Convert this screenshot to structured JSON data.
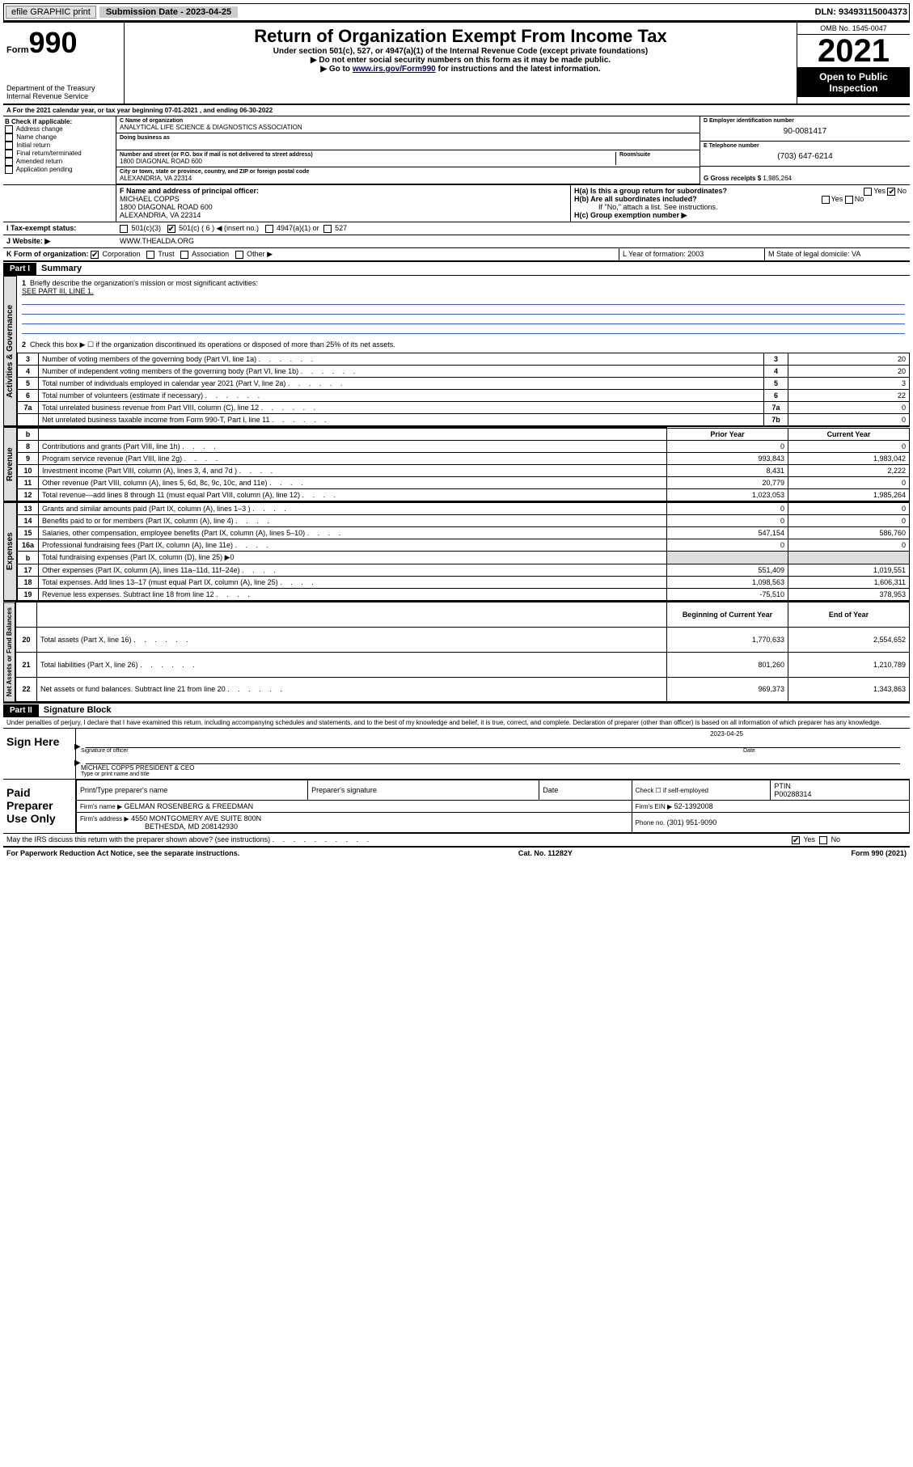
{
  "topbar": {
    "efile": "efile GRAPHIC print",
    "sub_label": "Submission Date - 2023-04-25",
    "dln": "DLN: 93493115004373"
  },
  "header": {
    "form_word": "Form",
    "form_no": "990",
    "title": "Return of Organization Exempt From Income Tax",
    "subtitle": "Under section 501(c), 527, or 4947(a)(1) of the Internal Revenue Code (except private foundations)",
    "note1": "▶ Do not enter social security numbers on this form as it may be made public.",
    "note2_pre": "▶ Go to ",
    "note2_link": "www.irs.gov/Form990",
    "note2_post": " for instructions and the latest information.",
    "dept": "Department of the Treasury",
    "irs": "Internal Revenue Service",
    "omb": "OMB No. 1545-0047",
    "year": "2021",
    "open": "Open to Public Inspection"
  },
  "line_a": "A For the 2021 calendar year, or tax year beginning 07-01-2021   , and ending 06-30-2022",
  "section_b": {
    "hdr": "B Check if applicable:",
    "items": [
      "Address change",
      "Name change",
      "Initial return",
      "Final return/terminated",
      "Amended return",
      "Application pending"
    ]
  },
  "section_c": {
    "name_lbl": "C Name of organization",
    "name": "ANALYTICAL LIFE SCIENCE & DIAGNOSTICS ASSOCIATION",
    "dba_lbl": "Doing business as",
    "addr_lbl": "Number and street (or P.O. box if mail is not delivered to street address)",
    "room_lbl": "Room/suite",
    "addr": "1800 DIAGONAL ROAD 600",
    "city_lbl": "City or town, state or province, country, and ZIP or foreign postal code",
    "city": "ALEXANDRIA, VA  22314"
  },
  "section_d": {
    "ein_lbl": "D Employer identification number",
    "ein": "90-0081417",
    "tel_lbl": "E Telephone number",
    "tel": "(703) 647-6214",
    "gross_lbl": "G Gross receipts $",
    "gross": "1,985,264"
  },
  "section_f": {
    "lbl": "F Name and address of principal officer:",
    "name": "MICHAEL COPPS",
    "addr1": "1800 DIAGONAL ROAD 600",
    "addr2": "ALEXANDRIA, VA  22314"
  },
  "section_h": {
    "ha": "H(a)  Is this a group return for subordinates?",
    "hb": "H(b)  Are all subordinates included?",
    "hb_note": "If \"No,\" attach a list. See instructions.",
    "hc": "H(c)  Group exemption number ▶",
    "yes": "Yes",
    "no": "No"
  },
  "section_i": {
    "lbl": "I   Tax-exempt status:",
    "c3": "501(c)(3)",
    "c": "501(c) ( 6 ) ◀ (insert no.)",
    "a1": "4947(a)(1) or",
    "s527": "527"
  },
  "section_j": {
    "lbl": "J   Website: ▶",
    "val": "WWW.THEALDA.ORG"
  },
  "section_k": {
    "lbl": "K Form of organization:",
    "opts": [
      "Corporation",
      "Trust",
      "Association",
      "Other ▶"
    ],
    "l": "L Year of formation: 2003",
    "m": "M State of legal domicile: VA"
  },
  "part1": {
    "hdr": "Part I",
    "title": "Summary",
    "q1": "Briefly describe the organization's mission or most significant activities:",
    "q1_val": "SEE PART III, LINE 1.",
    "q2": "Check this box ▶ ☐  if the organization discontinued its operations or disposed of more than 25% of its net assets.",
    "vtab1": "Activities & Governance",
    "vtab2": "Revenue",
    "vtab3": "Expenses",
    "vtab4": "Net Assets or Fund Balances",
    "col_prior": "Prior Year",
    "col_curr": "Current Year",
    "col_beg": "Beginning of Current Year",
    "col_end": "End of Year",
    "gov_rows": [
      {
        "n": "3",
        "desc": "Number of voting members of the governing body (Part VI, line 1a)",
        "key": "3",
        "val": "20"
      },
      {
        "n": "4",
        "desc": "Number of independent voting members of the governing body (Part VI, line 1b)",
        "key": "4",
        "val": "20"
      },
      {
        "n": "5",
        "desc": "Total number of individuals employed in calendar year 2021 (Part V, line 2a)",
        "key": "5",
        "val": "3"
      },
      {
        "n": "6",
        "desc": "Total number of volunteers (estimate if necessary)",
        "key": "6",
        "val": "22"
      },
      {
        "n": "7a",
        "desc": "Total unrelated business revenue from Part VIII, column (C), line 12",
        "key": "7a",
        "val": "0"
      },
      {
        "n": "",
        "desc": "Net unrelated business taxable income from Form 990-T, Part I, line 11",
        "key": "7b",
        "val": "0"
      }
    ],
    "rev_rows": [
      {
        "n": "8",
        "desc": "Contributions and grants (Part VIII, line 1h)",
        "p": "0",
        "c": "0"
      },
      {
        "n": "9",
        "desc": "Program service revenue (Part VIII, line 2g)",
        "p": "993,843",
        "c": "1,983,042"
      },
      {
        "n": "10",
        "desc": "Investment income (Part VIII, column (A), lines 3, 4, and 7d )",
        "p": "8,431",
        "c": "2,222"
      },
      {
        "n": "11",
        "desc": "Other revenue (Part VIII, column (A), lines 5, 6d, 8c, 9c, 10c, and 11e)",
        "p": "20,779",
        "c": "0"
      },
      {
        "n": "12",
        "desc": "Total revenue—add lines 8 through 11 (must equal Part VIII, column (A), line 12)",
        "p": "1,023,053",
        "c": "1,985,264"
      }
    ],
    "exp_rows": [
      {
        "n": "13",
        "desc": "Grants and similar amounts paid (Part IX, column (A), lines 1–3 )",
        "p": "0",
        "c": "0"
      },
      {
        "n": "14",
        "desc": "Benefits paid to or for members (Part IX, column (A), line 4)",
        "p": "0",
        "c": "0"
      },
      {
        "n": "15",
        "desc": "Salaries, other compensation, employee benefits (Part IX, column (A), lines 5–10)",
        "p": "547,154",
        "c": "586,760"
      },
      {
        "n": "16a",
        "desc": "Professional fundraising fees (Part IX, column (A), line 11e)",
        "p": "0",
        "c": "0"
      },
      {
        "n": "b",
        "desc": "Total fundraising expenses (Part IX, column (D), line 25) ▶0",
        "p": "",
        "c": ""
      },
      {
        "n": "17",
        "desc": "Other expenses (Part IX, column (A), lines 11a–11d, 11f–24e)",
        "p": "551,409",
        "c": "1,019,551"
      },
      {
        "n": "18",
        "desc": "Total expenses. Add lines 13–17 (must equal Part IX, column (A), line 25)",
        "p": "1,098,563",
        "c": "1,606,311"
      },
      {
        "n": "19",
        "desc": "Revenue less expenses. Subtract line 18 from line 12",
        "p": "-75,510",
        "c": "378,953"
      }
    ],
    "net_rows": [
      {
        "n": "20",
        "desc": "Total assets (Part X, line 16)",
        "p": "1,770,633",
        "c": "2,554,652"
      },
      {
        "n": "21",
        "desc": "Total liabilities (Part X, line 26)",
        "p": "801,260",
        "c": "1,210,789"
      },
      {
        "n": "22",
        "desc": "Net assets or fund balances. Subtract line 21 from line 20",
        "p": "969,373",
        "c": "1,343,863"
      }
    ]
  },
  "part2": {
    "hdr": "Part II",
    "title": "Signature Block",
    "decl": "Under penalties of perjury, I declare that I have examined this return, including accompanying schedules and statements, and to the best of my knowledge and belief, it is true, correct, and complete. Declaration of preparer (other than officer) is based on all information of which preparer has any knowledge.",
    "sign_here": "Sign Here",
    "sig_officer": "Signature of officer",
    "sig_date": "Date",
    "sig_date_val": "2023-04-25",
    "officer_name": "MICHAEL COPPS  PRESIDENT & CEO",
    "officer_name_lbl": "Type or print name and title",
    "paid": "Paid Preparer Use Only",
    "prep_name_lbl": "Print/Type preparer's name",
    "prep_sig_lbl": "Preparer's signature",
    "date_lbl": "Date",
    "check_lbl": "Check ☐ if self-employed",
    "ptin_lbl": "PTIN",
    "ptin": "P00288314",
    "firm_name_lbl": "Firm's name    ▶",
    "firm_name": "GELMAN ROSENBERG & FREEDMAN",
    "firm_ein_lbl": "Firm's EIN ▶",
    "firm_ein": "52-1392008",
    "firm_addr_lbl": "Firm's address ▶",
    "firm_addr1": "4550 MONTGOMERY AVE SUITE 800N",
    "firm_addr2": "BETHESDA, MD  208142930",
    "phone_lbl": "Phone no.",
    "phone": "(301) 951-9090",
    "may_irs": "May the IRS discuss this return with the preparer shown above? (see instructions)",
    "paperwork": "For Paperwork Reduction Act Notice, see the separate instructions.",
    "cat": "Cat. No. 11282Y",
    "form_footer": "Form 990 (2021)"
  },
  "colors": {
    "link_blue": "#1a4bcc",
    "rule_blue": "#4060c0",
    "gray_bg": "#dddddd",
    "black": "#000000"
  }
}
